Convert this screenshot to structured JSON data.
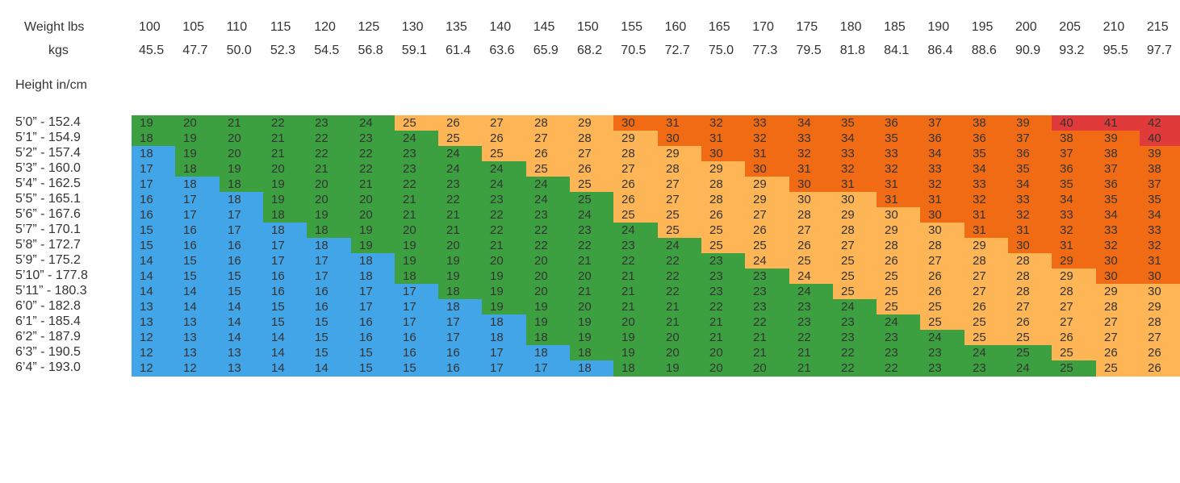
{
  "chart_data": {
    "type": "table",
    "weight_label": "Weight lbs",
    "kgs_label": "kgs",
    "height_label": "Height in/cm",
    "weights_lbs": [
      "100",
      "105",
      "110",
      "115",
      "120",
      "125",
      "130",
      "135",
      "140",
      "145",
      "150",
      "155",
      "160",
      "165",
      "170",
      "175",
      "180",
      "185",
      "190",
      "195",
      "200",
      "205",
      "210",
      "215"
    ],
    "weights_kgs": [
      "45.5",
      "47.7",
      "50.0",
      "52.3",
      "54.5",
      "56.8",
      "59.1",
      "61.4",
      "63.6",
      "65.9",
      "68.2",
      "70.5",
      "72.7",
      "75.0",
      "77.3",
      "79.5",
      "81.8",
      "84.1",
      "86.4",
      "88.6",
      "90.9",
      "93.2",
      "95.5",
      "97.7"
    ],
    "heights": [
      "5’0” - 152.4",
      "5’1” - 154.9",
      "5’2” - 157.4",
      "5’3” - 160.0",
      "5’4” - 162.5",
      "5’5” - 165.1",
      "5’6” - 167.6",
      "5’7” - 170.1",
      "5’8” - 172.7",
      "5’9” - 175.2",
      "5’10” - 177.8",
      "5’11” - 180.3",
      "6’0” - 182.8",
      "6’1” - 185.4",
      "6’2” - 187.9",
      "6’3” - 190.5",
      "6’4” - 193.0"
    ],
    "values": [
      [
        19,
        20,
        21,
        22,
        23,
        24,
        25,
        26,
        27,
        28,
        29,
        30,
        31,
        32,
        33,
        34,
        35,
        36,
        37,
        38,
        39,
        40,
        41,
        42
      ],
      [
        18,
        19,
        20,
        21,
        22,
        23,
        24,
        25,
        26,
        27,
        28,
        29,
        30,
        31,
        32,
        33,
        34,
        35,
        36,
        36,
        37,
        38,
        39,
        40
      ],
      [
        18,
        19,
        20,
        21,
        22,
        22,
        23,
        24,
        25,
        26,
        27,
        28,
        29,
        30,
        31,
        32,
        33,
        33,
        34,
        35,
        36,
        37,
        38,
        39
      ],
      [
        17,
        18,
        19,
        20,
        21,
        22,
        23,
        24,
        24,
        25,
        26,
        27,
        28,
        29,
        30,
        31,
        32,
        32,
        33,
        34,
        35,
        36,
        37,
        38
      ],
      [
        17,
        18,
        18,
        19,
        20,
        21,
        22,
        23,
        24,
        24,
        25,
        26,
        27,
        28,
        29,
        30,
        31,
        31,
        32,
        33,
        34,
        35,
        36,
        37
      ],
      [
        16,
        17,
        18,
        19,
        20,
        20,
        21,
        22,
        23,
        24,
        25,
        26,
        27,
        28,
        29,
        30,
        30,
        31,
        31,
        32,
        33,
        34,
        35,
        35
      ],
      [
        16,
        17,
        17,
        18,
        19,
        20,
        21,
        21,
        22,
        23,
        24,
        25,
        25,
        26,
        27,
        28,
        29,
        30,
        30,
        31,
        32,
        33,
        34,
        34
      ],
      [
        15,
        16,
        17,
        18,
        18,
        19,
        20,
        21,
        22,
        22,
        23,
        24,
        25,
        25,
        26,
        27,
        28,
        29,
        30,
        31,
        31,
        32,
        33,
        33
      ],
      [
        15,
        16,
        16,
        17,
        18,
        19,
        19,
        20,
        21,
        22,
        22,
        23,
        24,
        25,
        25,
        26,
        27,
        28,
        28,
        29,
        30,
        31,
        32,
        32
      ],
      [
        14,
        15,
        16,
        17,
        17,
        18,
        19,
        19,
        20,
        20,
        21,
        22,
        22,
        23,
        24,
        25,
        25,
        26,
        27,
        28,
        28,
        29,
        30,
        31
      ],
      [
        14,
        15,
        15,
        16,
        17,
        18,
        18,
        19,
        19,
        20,
        20,
        21,
        22,
        23,
        23,
        24,
        25,
        25,
        26,
        27,
        28,
        29,
        30,
        30
      ],
      [
        14,
        14,
        15,
        16,
        16,
        17,
        17,
        18,
        19,
        20,
        21,
        21,
        22,
        23,
        23,
        24,
        25,
        25,
        26,
        27,
        28,
        28,
        29,
        30
      ],
      [
        13,
        14,
        14,
        15,
        16,
        17,
        17,
        18,
        19,
        19,
        20,
        21,
        21,
        22,
        23,
        23,
        24,
        25,
        25,
        26,
        27,
        27,
        28,
        29
      ],
      [
        13,
        13,
        14,
        15,
        15,
        16,
        17,
        17,
        18,
        19,
        19,
        20,
        21,
        21,
        22,
        23,
        23,
        24,
        25,
        25,
        26,
        27,
        27,
        28
      ],
      [
        12,
        13,
        14,
        14,
        15,
        16,
        16,
        17,
        18,
        18,
        19,
        19,
        20,
        21,
        21,
        22,
        23,
        23,
        24,
        25,
        25,
        26,
        27,
        27
      ],
      [
        12,
        13,
        13,
        14,
        15,
        15,
        16,
        16,
        17,
        18,
        18,
        19,
        20,
        20,
        21,
        21,
        22,
        23,
        23,
        24,
        25,
        25,
        26,
        26
      ],
      [
        12,
        12,
        13,
        14,
        14,
        15,
        15,
        16,
        17,
        17,
        18,
        18,
        19,
        20,
        20,
        21,
        22,
        22,
        23,
        23,
        24,
        25,
        25,
        26
      ]
    ],
    "category_colors": {
      "underweight": "#42a5e8",
      "healthy": "#3da040",
      "overweight": "#fdb555",
      "obese": "#f06b13",
      "extreme": "#e03a3a"
    },
    "category_thresholds": {
      "healthy_min": 18.5,
      "overweight_min": 25,
      "obese_min": 30,
      "extreme_min": 40
    }
  }
}
